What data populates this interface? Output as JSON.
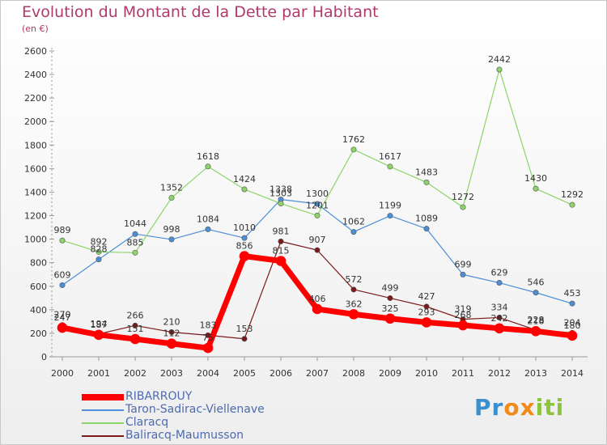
{
  "header": {
    "title": "Evolution du Montant de la Dette par Habitant",
    "unit": "(en €)"
  },
  "logo": {
    "text": "Proxiti",
    "colors": [
      "#3a8fd0",
      "#f08a1c",
      "#8cc43c"
    ]
  },
  "chart_data": {
    "type": "line",
    "title": "Evolution du Montant de la Dette par Habitant",
    "subtitle": "(en €)",
    "xlabel": "",
    "ylabel": "",
    "x": [
      "2000",
      "2001",
      "2002",
      "2003",
      "2004",
      "2005",
      "2006",
      "2007",
      "2008",
      "2009",
      "2010",
      "2011",
      "2012",
      "2013",
      "2014"
    ],
    "ylim": [
      0,
      2600
    ],
    "yticks": [
      0,
      200,
      400,
      600,
      800,
      1000,
      1200,
      1400,
      1600,
      1800,
      2000,
      2200,
      2400,
      2600
    ],
    "grid": false,
    "legend_position": "bottom-left",
    "series": [
      {
        "name": "Taron-Sadirac-Viellenave",
        "color": "#4d8fd6",
        "values": [
          609,
          828,
          1044,
          998,
          1084,
          1010,
          1338,
          1300,
          1062,
          1199,
          1089,
          699,
          629,
          546,
          453
        ],
        "labels": [
          "609",
          "828",
          "1044",
          "998",
          "1084",
          "1010",
          "1338",
          "1300",
          "1062",
          "1199",
          "1089",
          "699",
          "629",
          "546",
          "453"
        ]
      },
      {
        "name": "Claracq",
        "color": "#8cd46a",
        "values": [
          989,
          892,
          885,
          1352,
          1618,
          1424,
          1303,
          1201,
          1762,
          1617,
          1483,
          1272,
          2442,
          1430,
          1292
        ],
        "labels": [
          "989",
          "892",
          "885",
          "1352",
          "1618",
          "1424",
          "1303",
          "1201",
          "1762",
          "1617",
          "1483",
          "1272",
          "2442",
          "1430",
          "1292"
        ]
      },
      {
        "name": "Baliracq-Maumusson",
        "color": "#7a1a1a",
        "values": [
          270,
          194,
          266,
          210,
          183,
          153,
          981,
          907,
          572,
          499,
          427,
          319,
          334,
          228,
          204
        ],
        "labels": [
          "270",
          "194",
          "266",
          "210",
          "183",
          "153",
          "981",
          "907",
          "572",
          "499",
          "427",
          "319",
          "334",
          "228",
          "204"
        ]
      },
      {
        "name": "RIBARROUY",
        "color": "#ff0000",
        "values": [
          247,
          187,
          151,
          112,
          75,
          856,
          815,
          406,
          362,
          325,
          293,
          268,
          242,
          218,
          180
        ],
        "labels": [
          "247",
          "187",
          "151",
          "112",
          "75",
          "856",
          "815",
          "406",
          "362",
          "325",
          "293",
          "268",
          "242",
          "218",
          "180"
        ]
      }
    ]
  },
  "legend": {
    "items": [
      {
        "name": "RIBARROUY",
        "color": "#ff0000"
      },
      {
        "name": "Taron-Sadirac-Viellenave",
        "color": "#4d8fd6"
      },
      {
        "name": "Claracq",
        "color": "#8cd46a"
      },
      {
        "name": "Baliracq-Maumusson",
        "color": "#7a1a1a"
      }
    ]
  }
}
